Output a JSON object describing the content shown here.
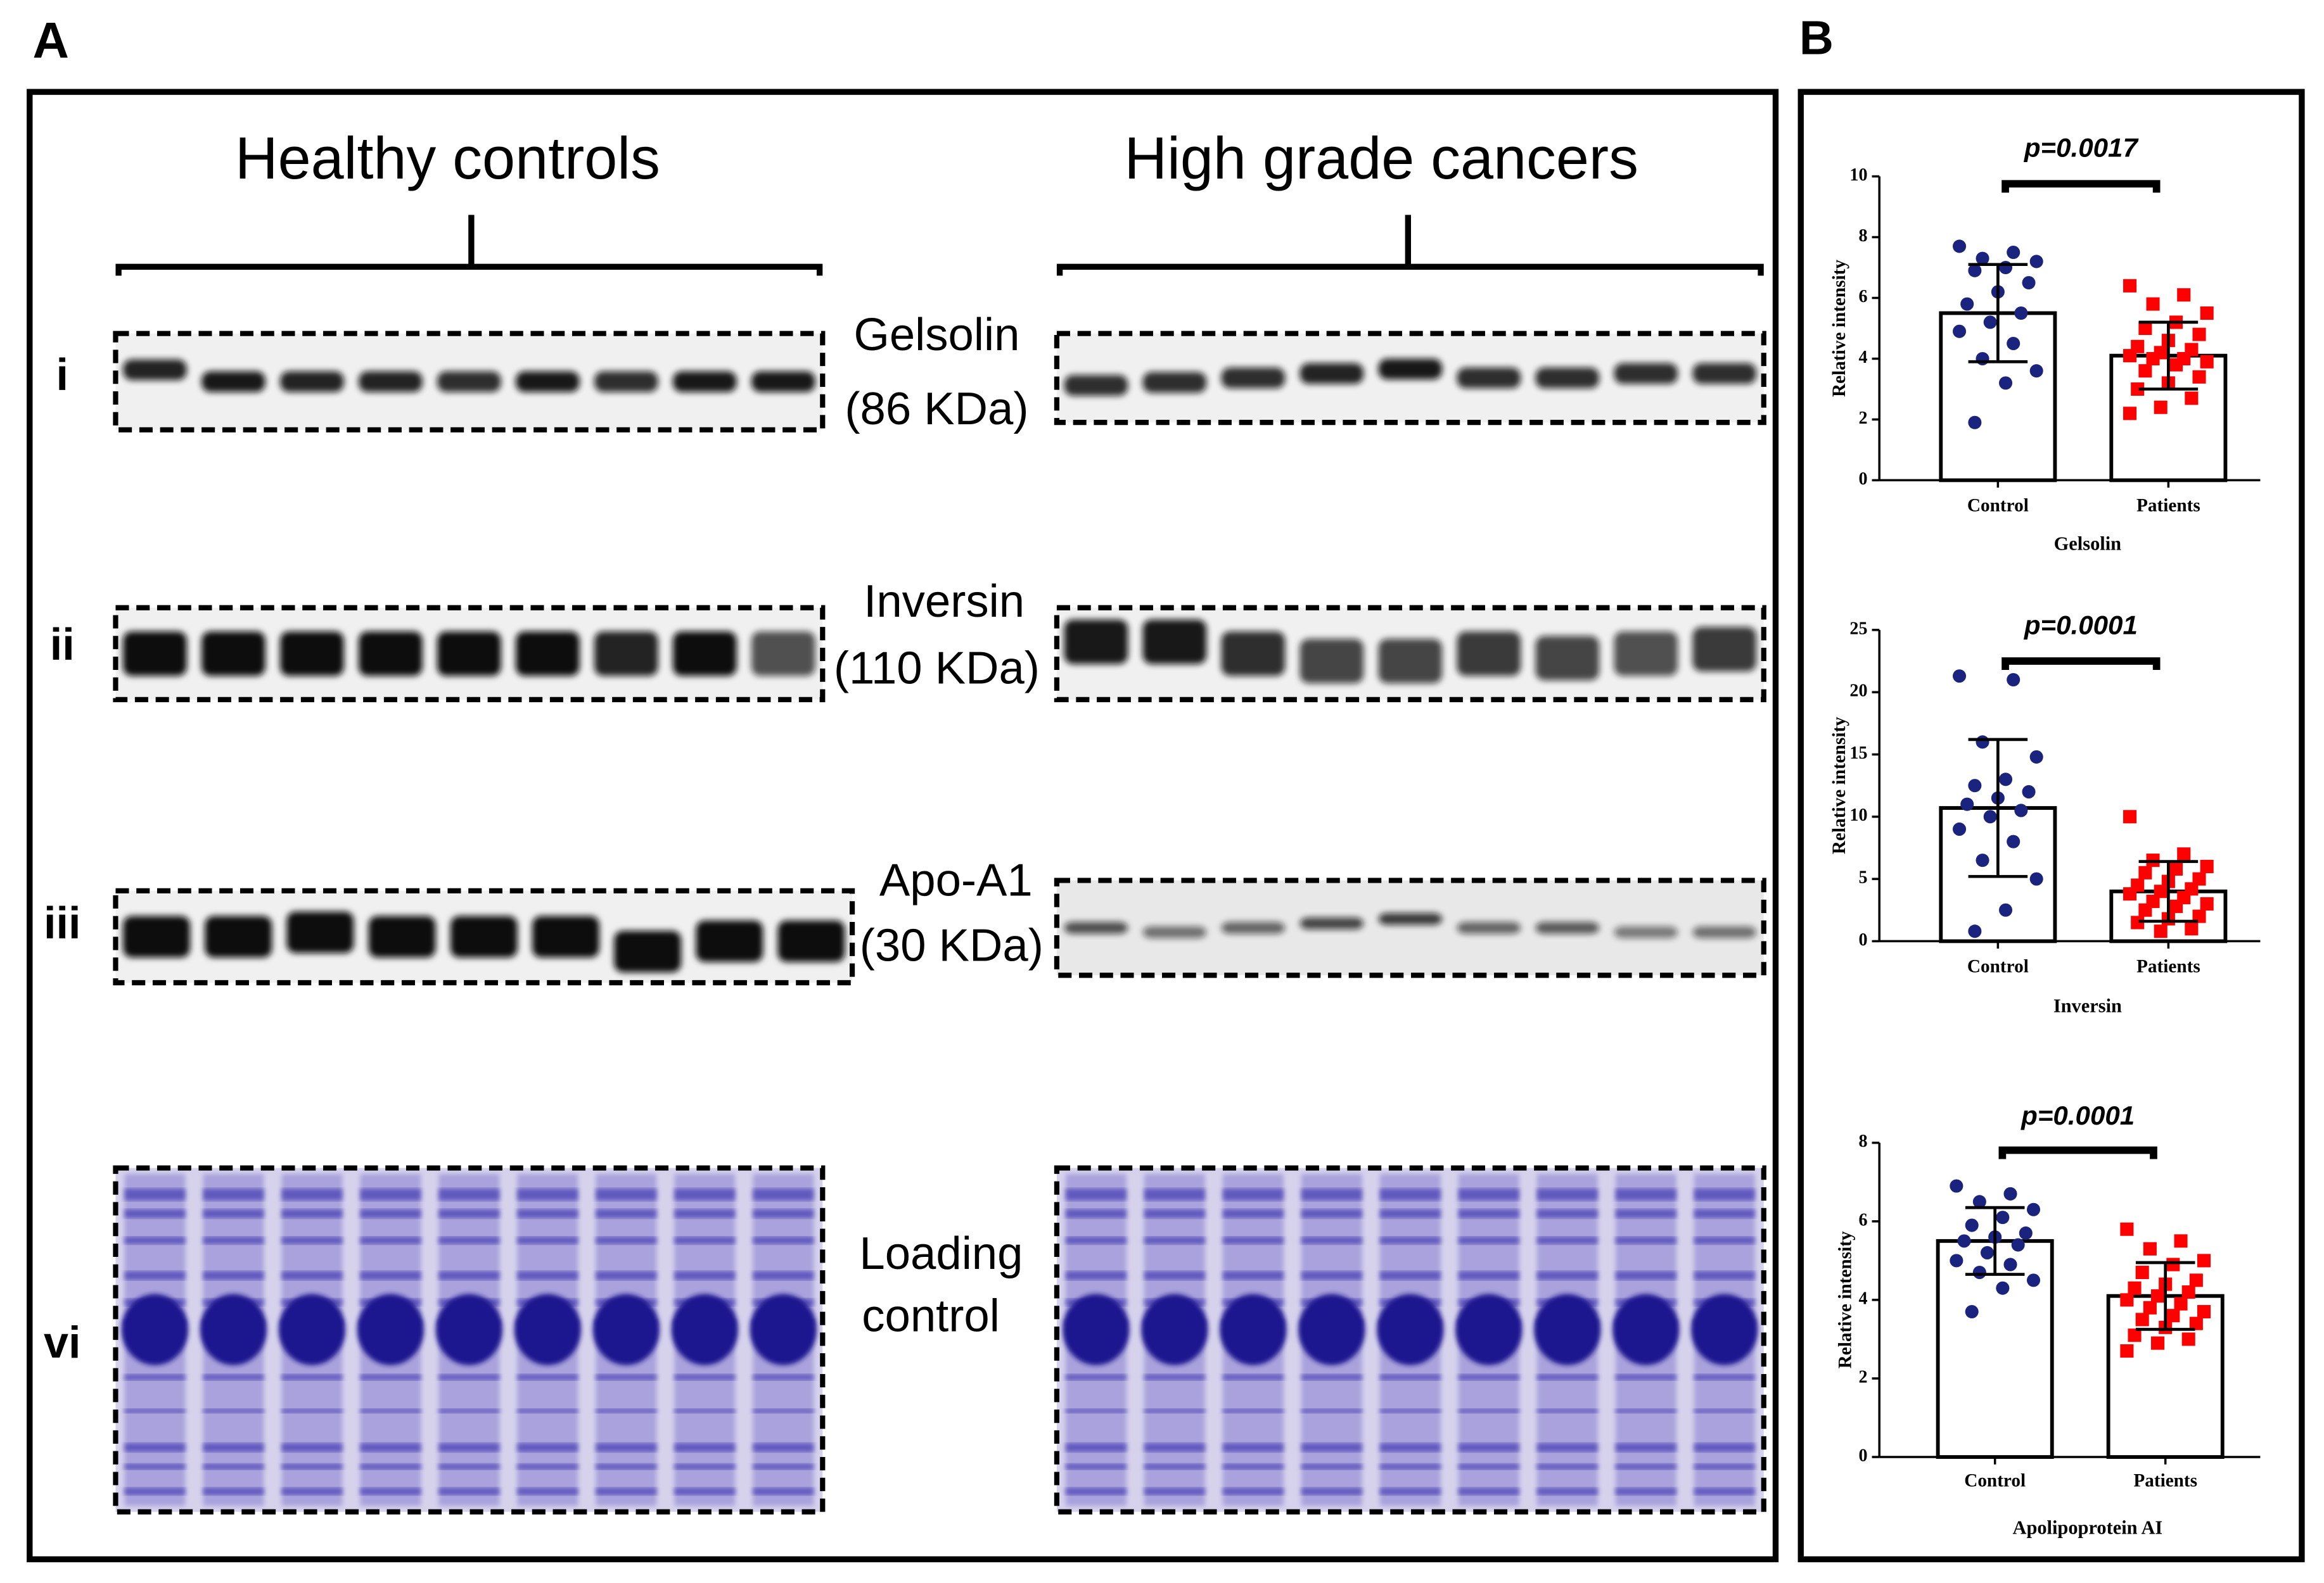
{
  "panel_a": {
    "label": "A",
    "groups": [
      "Healthy controls",
      "High grade cancers"
    ],
    "rows": [
      {
        "numeral": "i",
        "lines": [
          "Gelsolin",
          "(86 KDa)"
        ]
      },
      {
        "numeral": "ii",
        "lines": [
          "Inversin",
          "(110 KDa)"
        ]
      },
      {
        "numeral": "iii",
        "lines": [
          "Apo-A1",
          "(30 KDa)"
        ]
      },
      {
        "numeral": "vi",
        "lines": [
          "Loading",
          "control"
        ]
      }
    ]
  },
  "panel_b": {
    "label": "B"
  },
  "chart_data": [
    {
      "type": "bar",
      "title": "p=0.0017",
      "xlabel": "Gelsolin",
      "ylabel": "Relative intensity",
      "categories": [
        "Control",
        "Patients"
      ],
      "values": [
        5.5,
        4.1
      ],
      "errors": [
        1.6,
        1.1
      ],
      "colors": [
        "#1a237e",
        "#ff0000"
      ],
      "markers": [
        "circle",
        "square"
      ],
      "points": [
        [
          7.7,
          7.5,
          7.3,
          7.2,
          7.0,
          6.9,
          6.5,
          6.2,
          5.8,
          5.5,
          5.2,
          4.9,
          4.5,
          4.0,
          3.6,
          3.2,
          1.9
        ],
        [
          6.4,
          6.1,
          5.8,
          5.5,
          5.2,
          5.0,
          4.8,
          4.6,
          4.4,
          4.3,
          4.2,
          4.1,
          4.0,
          4.0,
          3.9,
          3.8,
          3.6,
          3.4,
          3.2,
          3.0,
          2.7,
          2.4,
          2.2
        ]
      ],
      "ylim": [
        0,
        10
      ],
      "yticks": [
        0,
        2,
        4,
        6,
        8,
        10
      ]
    },
    {
      "type": "bar",
      "title": "p=0.0001",
      "xlabel": "Inversin",
      "ylabel": "Relative intensity",
      "categories": [
        "Control",
        "Patients"
      ],
      "values": [
        10.7,
        4.0
      ],
      "errors": [
        5.5,
        2.4
      ],
      "colors": [
        "#1a237e",
        "#ff0000"
      ],
      "markers": [
        "circle",
        "square"
      ],
      "points": [
        [
          21.3,
          21.0,
          16.0,
          14.8,
          13.0,
          12.5,
          12.0,
          11.5,
          11.0,
          10.5,
          10.0,
          9.0,
          8.0,
          6.5,
          5.0,
          2.5,
          0.8
        ],
        [
          10.0,
          7.0,
          6.5,
          6.0,
          5.8,
          5.5,
          5.0,
          4.8,
          4.5,
          4.2,
          4.0,
          3.8,
          3.5,
          3.2,
          3.0,
          2.8,
          2.5,
          2.0,
          1.8,
          1.5,
          1.0,
          0.8
        ]
      ],
      "ylim": [
        0,
        25
      ],
      "yticks": [
        0,
        5,
        10,
        15,
        20,
        25
      ]
    },
    {
      "type": "bar",
      "title": "p=0.0001",
      "xlabel": "Apolipoprotein AI",
      "ylabel": "Relative intensity",
      "categories": [
        "Control",
        "Patients"
      ],
      "values": [
        5.5,
        4.1
      ],
      "errors": [
        0.85,
        0.85
      ],
      "colors": [
        "#1a237e",
        "#ff0000"
      ],
      "markers": [
        "circle",
        "square"
      ],
      "points": [
        [
          6.9,
          6.7,
          6.5,
          6.3,
          6.1,
          5.9,
          5.7,
          5.6,
          5.5,
          5.4,
          5.2,
          5.0,
          4.9,
          4.7,
          4.5,
          4.3,
          3.7
        ],
        [
          5.8,
          5.5,
          5.3,
          5.0,
          4.9,
          4.7,
          4.5,
          4.4,
          4.3,
          4.2,
          4.1,
          4.0,
          3.9,
          3.8,
          3.7,
          3.6,
          3.5,
          3.4,
          3.3,
          3.1,
          3.0,
          2.9,
          2.7
        ]
      ],
      "ylim": [
        0,
        8
      ],
      "yticks": [
        0,
        2,
        4,
        6,
        8
      ]
    }
  ]
}
